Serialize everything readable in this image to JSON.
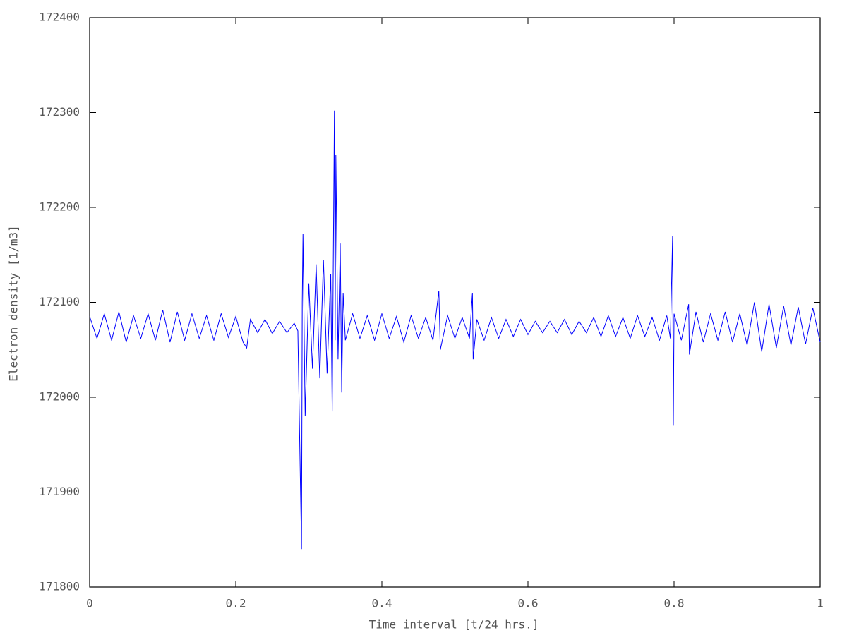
{
  "chart_data": {
    "type": "line",
    "xlabel": "Time interval [t/24 hrs.]",
    "ylabel": "Electron density [1/m3]",
    "color": "#0000ff",
    "grid": false,
    "xlim": [
      0,
      1
    ],
    "xticks": [
      0,
      0.2,
      0.4,
      0.6,
      0.8,
      1
    ],
    "ylim": [
      171800,
      172400
    ],
    "yticks": [
      171800,
      171900,
      172000,
      172100,
      172200,
      172300,
      172400
    ],
    "x": [
      0,
      0.01,
      0.02,
      0.03,
      0.04,
      0.05,
      0.06,
      0.07,
      0.08,
      0.09,
      0.1,
      0.11,
      0.12,
      0.13,
      0.14,
      0.15,
      0.16,
      0.17,
      0.18,
      0.19,
      0.2,
      0.21,
      0.215,
      0.22,
      0.23,
      0.24,
      0.25,
      0.26,
      0.27,
      0.28,
      0.285,
      0.29,
      0.291,
      0.292,
      0.295,
      0.3,
      0.305,
      0.31,
      0.315,
      0.32,
      0.325,
      0.33,
      0.332,
      0.335,
      0.336,
      0.337,
      0.34,
      0.343,
      0.345,
      0.347,
      0.35,
      0.36,
      0.37,
      0.38,
      0.39,
      0.4,
      0.41,
      0.42,
      0.43,
      0.44,
      0.45,
      0.46,
      0.47,
      0.478,
      0.48,
      0.49,
      0.5,
      0.51,
      0.52,
      0.524,
      0.525,
      0.53,
      0.54,
      0.55,
      0.56,
      0.57,
      0.58,
      0.59,
      0.6,
      0.61,
      0.62,
      0.63,
      0.64,
      0.65,
      0.66,
      0.67,
      0.68,
      0.69,
      0.7,
      0.71,
      0.72,
      0.73,
      0.74,
      0.75,
      0.76,
      0.77,
      0.78,
      0.79,
      0.795,
      0.798,
      0.799,
      0.8,
      0.81,
      0.82,
      0.821,
      0.83,
      0.84,
      0.85,
      0.86,
      0.87,
      0.88,
      0.89,
      0.9,
      0.91,
      0.92,
      0.93,
      0.94,
      0.95,
      0.96,
      0.97,
      0.98,
      0.99,
      1
    ],
    "values": [
      172085,
      172062,
      172088,
      172060,
      172090,
      172058,
      172086,
      172062,
      172088,
      172060,
      172092,
      172058,
      172090,
      172060,
      172088,
      172062,
      172086,
      172060,
      172088,
      172063,
      172085,
      172058,
      172052,
      172082,
      172068,
      172082,
      172067,
      172080,
      172068,
      172078,
      172070,
      171840,
      172100,
      172172,
      171980,
      172120,
      172030,
      172140,
      172020,
      172145,
      172025,
      172130,
      171985,
      172302,
      172060,
      172255,
      172040,
      172162,
      172005,
      172110,
      172060,
      172088,
      172062,
      172086,
      172060,
      172088,
      172062,
      172085,
      172058,
      172086,
      172062,
      172084,
      172060,
      172112,
      172050,
      172086,
      172062,
      172084,
      172062,
      172110,
      172040,
      172082,
      172060,
      172084,
      172062,
      172082,
      172064,
      172082,
      172066,
      172080,
      172068,
      172080,
      172068,
      172082,
      172066,
      172080,
      172068,
      172084,
      172064,
      172086,
      172064,
      172084,
      172062,
      172086,
      172064,
      172084,
      172060,
      172086,
      172062,
      172170,
      171970,
      172088,
      172060,
      172098,
      172045,
      172090,
      172058,
      172088,
      172060,
      172090,
      172058,
      172088,
      172055,
      172100,
      172048,
      172098,
      172052,
      172096,
      172055,
      172095,
      172056,
      172094,
      172058
    ]
  }
}
